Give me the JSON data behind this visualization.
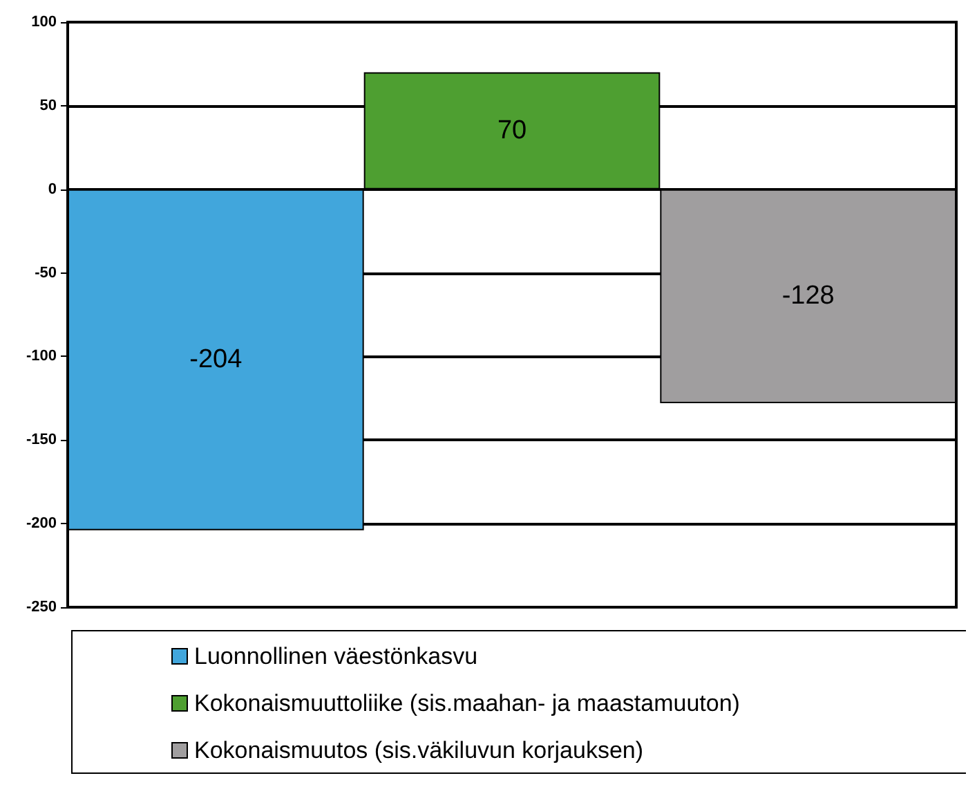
{
  "chart_data": {
    "type": "bar",
    "categories": [
      null
    ],
    "series": [
      {
        "name": "Luonnollinen väestönkasvu",
        "color": "#41a6dc",
        "values": [
          -204
        ]
      },
      {
        "name": "Kokonaismuuttoliike (sis.maahan- ja maastamuuton)",
        "color": "#4e9f31",
        "values": [
          70
        ]
      },
      {
        "name": "Kokonaismuutos (sis.väkiluvun korjauksen)",
        "color": "#a09e9f",
        "values": [
          -128
        ]
      }
    ],
    "ylim": [
      -250,
      100
    ],
    "yticks": [
      -250,
      -200,
      -150,
      -100,
      -50,
      0,
      50,
      100
    ],
    "grid": "y",
    "legend": "bottom",
    "data_labels": true
  }
}
